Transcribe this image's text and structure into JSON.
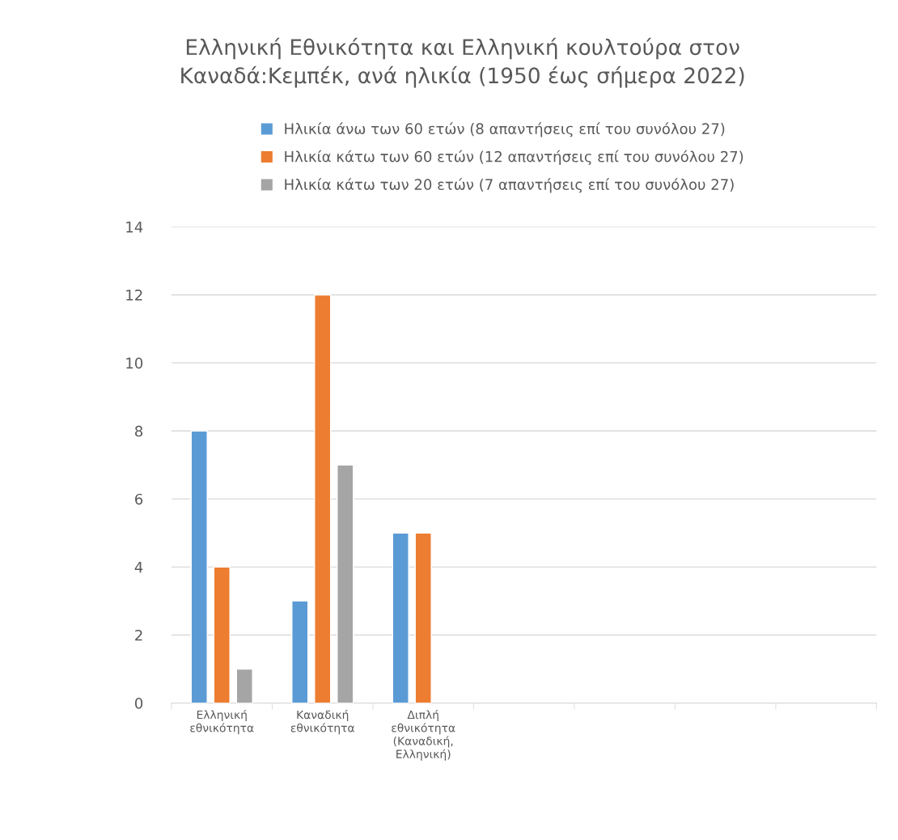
{
  "chart_data": {
    "type": "bar",
    "title": "Ελληνική Εθνικότητα και Ελληνική κουλτούρα στον\nΚαναδά:Κεμπέκ, ανά ηλικία (1950 έως σήμερα 2022)",
    "categories": [
      "Ελληνική\nεθνικότητα",
      "Καναδική\nεθνικότητα",
      "Διπλή\nεθνικότητα\n(Καναδική,\nΕλληνική)",
      null,
      null,
      null,
      null
    ],
    "series": [
      {
        "name": "Ηλικία άνω των 60 ετών (8 απαντήσεις επί του συνόλου 27)",
        "color": "#5b9bd5",
        "values": [
          8,
          3,
          5,
          null,
          null,
          null,
          null
        ]
      },
      {
        "name": "Ηλικία κάτω των 60 ετών (12 απαντήσεις επί του συνόλου 27)",
        "color": "#ed7d31",
        "values": [
          4,
          12,
          5,
          null,
          null,
          null,
          null
        ]
      },
      {
        "name": "Ηλικία κάτω των 20 ετών (7 απαντήσεις επί του συνόλου 27)",
        "color": "#a5a5a5",
        "values": [
          1,
          7,
          null,
          null,
          null,
          null,
          null
        ]
      }
    ],
    "ylim": [
      0,
      14
    ],
    "yticks": [
      0,
      2,
      4,
      6,
      8,
      10,
      12,
      14
    ],
    "grid": "y",
    "legend": "top"
  }
}
